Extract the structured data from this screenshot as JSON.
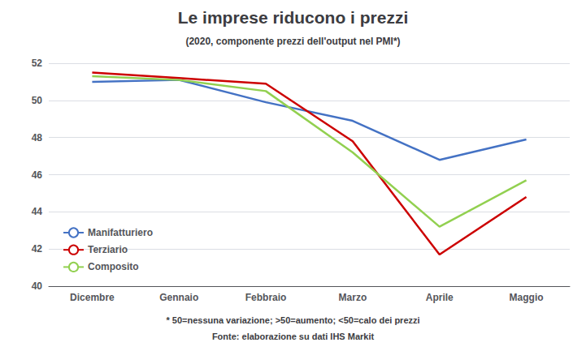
{
  "chart_data": {
    "type": "line",
    "title": "Le imprese riducono i prezzi",
    "subtitle": "(2020, componente prezzi dell'output nel PMI*)",
    "annotations": [
      "* 50=nessuna variazione; >50=aumento; <50=calo dei prezzi",
      "Fonte: elaborazione su dati IHS Markit"
    ],
    "categories": [
      "Dicembre",
      "Gennaio",
      "Febbraio",
      "Marzo",
      "Aprile",
      "Maggio"
    ],
    "series": [
      {
        "name": "Manifatturiero",
        "color": "#4472C4",
        "values": [
          51.0,
          51.1,
          49.9,
          48.9,
          46.8,
          47.9
        ]
      },
      {
        "name": "Terziario",
        "color": "#CC0000",
        "values": [
          51.5,
          51.2,
          50.9,
          47.8,
          41.7,
          44.8
        ]
      },
      {
        "name": "Composito",
        "color": "#92D050",
        "values": [
          51.3,
          51.1,
          50.5,
          47.2,
          43.2,
          45.7
        ]
      }
    ],
    "ylim": [
      40,
      52
    ],
    "yticks": [
      40,
      42,
      44,
      46,
      48,
      50,
      52
    ],
    "grid": true,
    "legend": "lower left"
  }
}
